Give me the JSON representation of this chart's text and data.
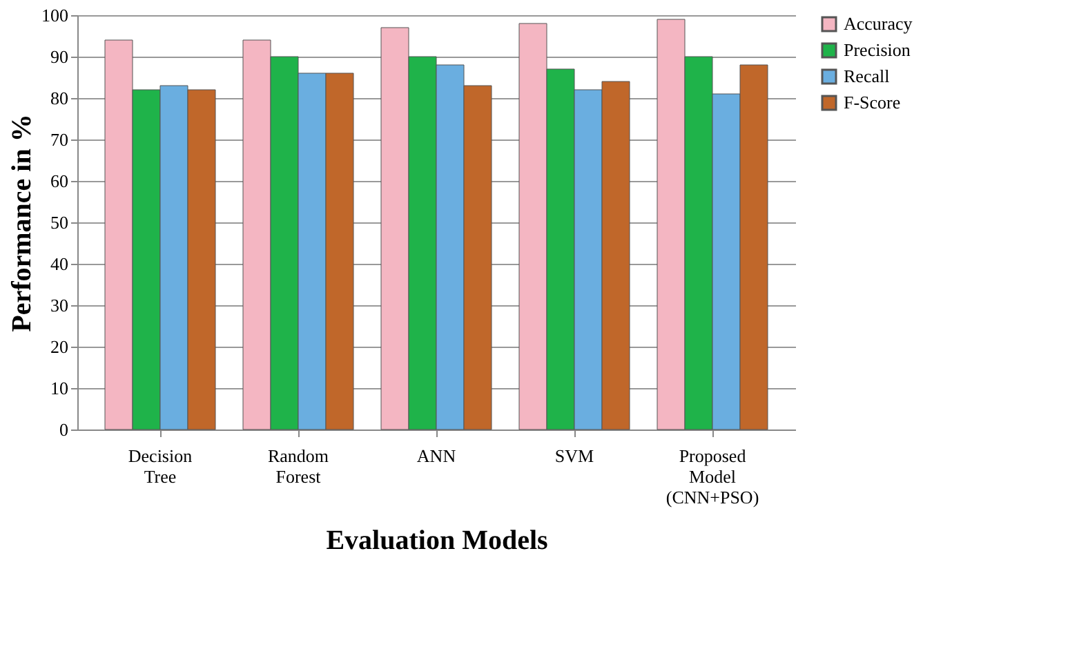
{
  "chart_data": {
    "type": "bar",
    "xlabel": "Evaluation Models",
    "ylabel": "Performance in %",
    "categories": [
      "Decision Tree",
      "Random Forest",
      "ANN",
      "SVM",
      "Proposed Model (CNN+PSO)"
    ],
    "series": [
      {
        "name": "Accuracy",
        "color": "#f4b6c2",
        "values": [
          94,
          94,
          97,
          98,
          99
        ]
      },
      {
        "name": "Precision",
        "color": "#1fb34a",
        "values": [
          82,
          90,
          90,
          87,
          90
        ]
      },
      {
        "name": "Recall",
        "color": "#6aaee0",
        "values": [
          83,
          86,
          88,
          82,
          81
        ]
      },
      {
        "name": "F-Score",
        "color": "#c0672a",
        "values": [
          82,
          86,
          83,
          84,
          88
        ]
      }
    ],
    "ylim": [
      0,
      100
    ],
    "yticks": [
      0,
      10,
      20,
      30,
      40,
      50,
      60,
      70,
      80,
      90,
      100
    ],
    "grid": "y",
    "legend": "right"
  }
}
